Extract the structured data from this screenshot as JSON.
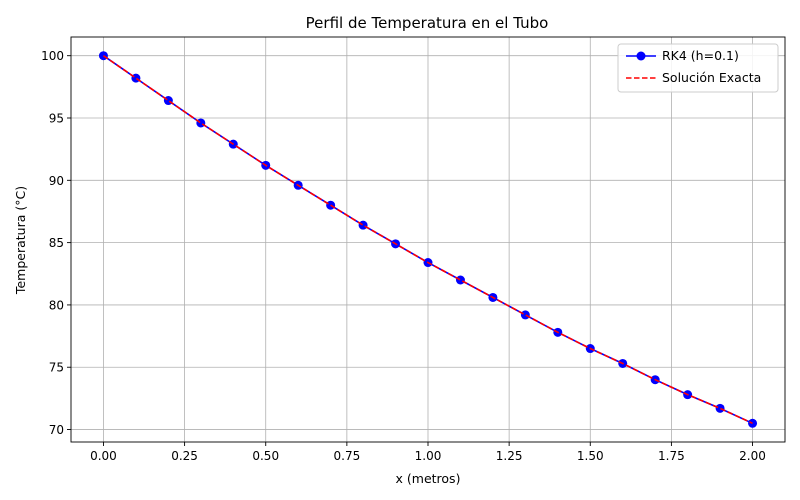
{
  "chart_data": {
    "type": "line",
    "title": "Perfil de Temperatura en el Tubo",
    "xlabel": "x (metros)",
    "ylabel": "Temperatura (°C)",
    "xlim": [
      -0.1,
      2.1
    ],
    "ylim": [
      69,
      101.5
    ],
    "xticks": [
      0.0,
      0.25,
      0.5,
      0.75,
      1.0,
      1.25,
      1.5,
      1.75,
      2.0
    ],
    "xtick_labels": [
      "0.00",
      "0.25",
      "0.50",
      "0.75",
      "1.00",
      "1.25",
      "1.50",
      "1.75",
      "2.00"
    ],
    "yticks": [
      70,
      75,
      80,
      85,
      90,
      95,
      100
    ],
    "ytick_labels": [
      "70",
      "75",
      "80",
      "85",
      "90",
      "95",
      "100"
    ],
    "grid": true,
    "legend_position": "top-right",
    "x": [
      0.0,
      0.1,
      0.2,
      0.3,
      0.4,
      0.5,
      0.6,
      0.7,
      0.8,
      0.9,
      1.0,
      1.1,
      1.2,
      1.3,
      1.4,
      1.5,
      1.6,
      1.7,
      1.8,
      1.9,
      2.0
    ],
    "series": [
      {
        "name": "RK4 (h=0.1)",
        "style": "solid-markers",
        "color": "#0000ff",
        "values": [
          100.0,
          98.2,
          96.4,
          94.6,
          92.9,
          91.2,
          89.6,
          88.0,
          86.4,
          84.9,
          83.4,
          82.0,
          80.6,
          79.2,
          77.8,
          76.5,
          75.3,
          74.0,
          72.8,
          71.7,
          70.5
        ]
      },
      {
        "name": "Solución Exacta",
        "style": "dashed",
        "color": "#ff0000",
        "values": [
          100.0,
          98.2,
          96.4,
          94.6,
          92.9,
          91.2,
          89.6,
          88.0,
          86.4,
          84.9,
          83.4,
          82.0,
          80.6,
          79.2,
          77.8,
          76.5,
          75.3,
          74.0,
          72.8,
          71.7,
          70.5
        ]
      }
    ]
  }
}
